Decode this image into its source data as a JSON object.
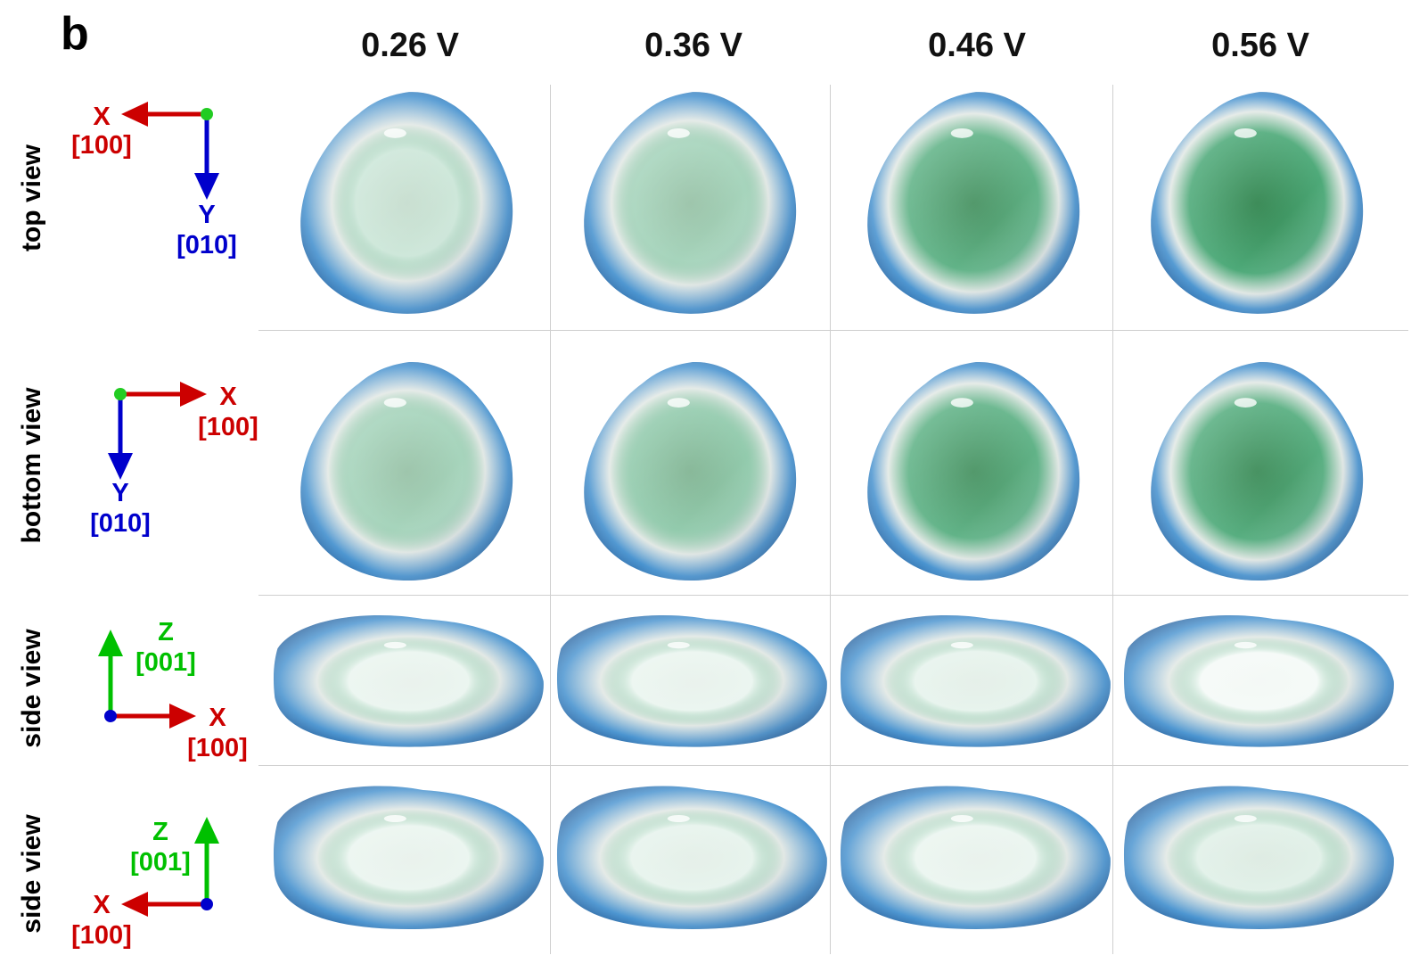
{
  "panel_label": "b",
  "columns": [
    "0.26 V",
    "0.36 V",
    "0.46 V",
    "0.56 V"
  ],
  "rows": [
    {
      "label": "top view",
      "axes": {
        "h_letter": "X",
        "h_index": "[100]",
        "v_letter": "Y",
        "v_index": "[010]"
      }
    },
    {
      "label": "bottom view",
      "axes": {
        "h_letter": "X",
        "h_index": "[100]",
        "v_letter": "Y",
        "v_index": "[010]"
      }
    },
    {
      "label": "side view",
      "axes": {
        "h_letter": "X",
        "h_index": "[100]",
        "v_letter": "Z",
        "v_index": "[001]"
      }
    },
    {
      "label": "side view",
      "axes": {
        "h_letter": "X",
        "h_index": "[100]",
        "v_letter": "Z",
        "v_index": "[001]"
      }
    }
  ],
  "colors": {
    "x_axis": "#cc0000",
    "y_axis": "#0000cc",
    "z_axis": "#00c000",
    "surface_blue": "#3b86c6",
    "surface_green": "#2e9a5a",
    "surface_white": "#e8ecea"
  }
}
